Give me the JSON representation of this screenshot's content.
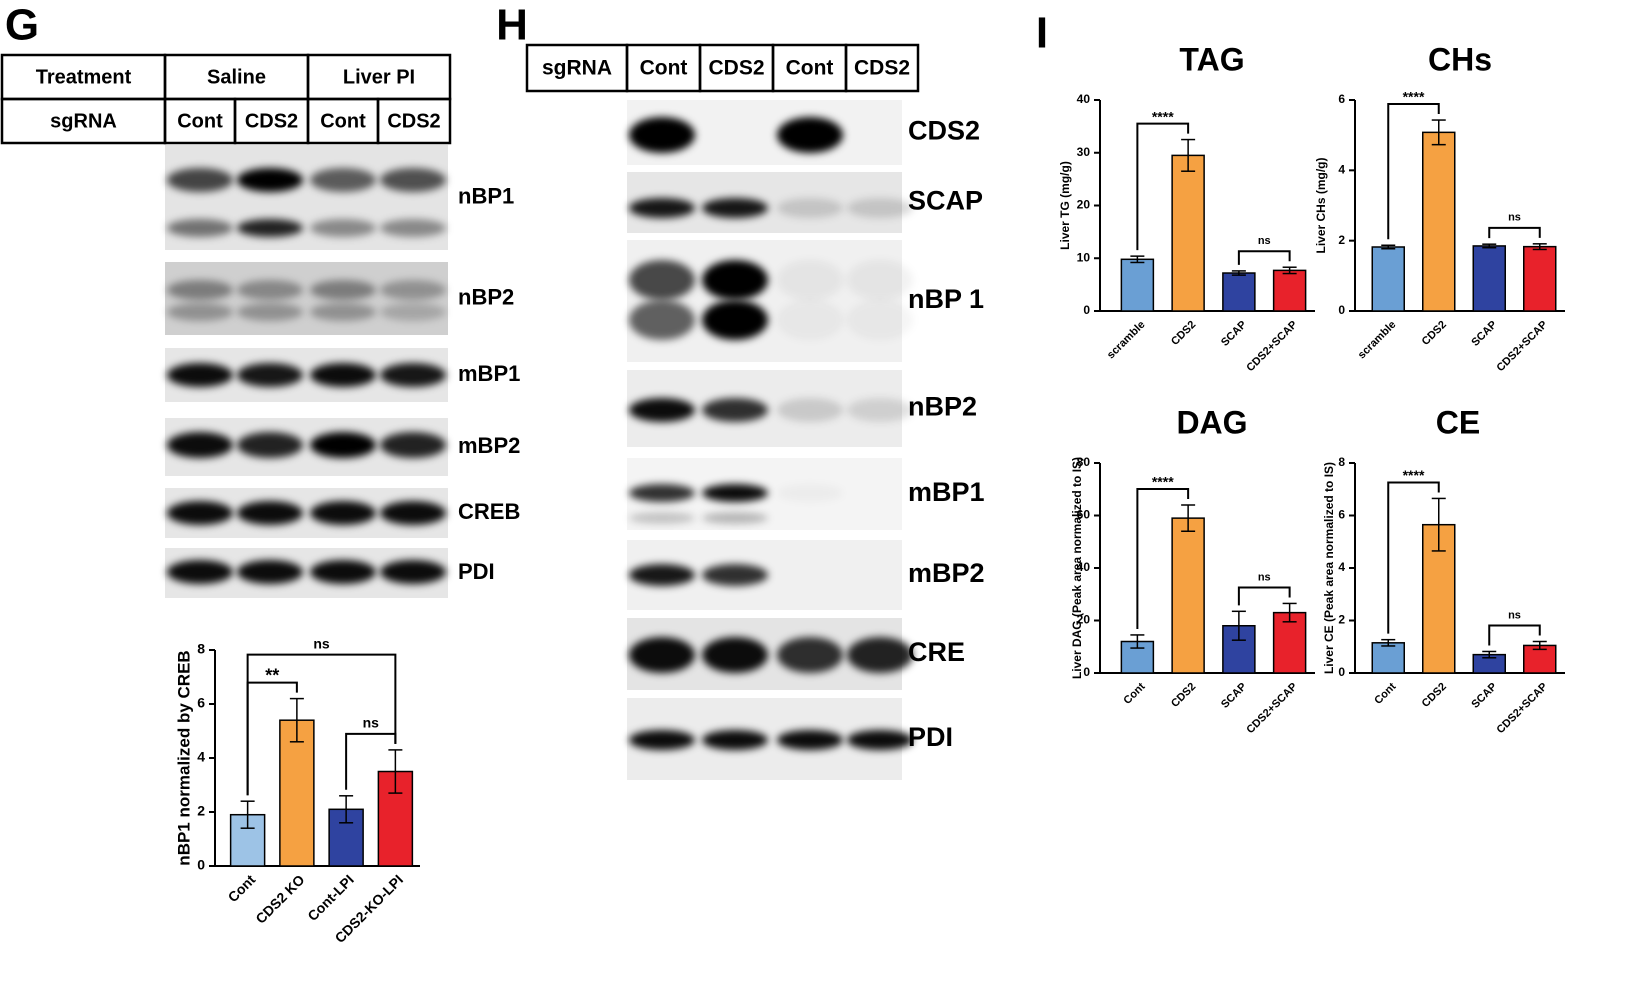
{
  "figure": {
    "panels": [
      "G",
      "H",
      "I"
    ],
    "g_table": {
      "rows": [
        [
          "Treatment",
          "Saline",
          "Liver PI"
        ],
        [
          "sgRNA",
          "Cont",
          "CDS2",
          "Cont",
          "CDS2"
        ]
      ]
    },
    "g_blots": [
      "nBP1",
      "nBP2",
      "mBP1",
      "mBP2",
      "CREB",
      "PDI"
    ],
    "h_table": {
      "rows": [
        [
          "sgRNA",
          "Cont",
          "CDS2",
          "Cont",
          "CDS2"
        ]
      ]
    },
    "h_blots": [
      "CDS2",
      "SCAP",
      "nBP 1",
      "nBP2",
      "mBP1",
      "mBP2",
      "CRE",
      "PDI"
    ]
  },
  "chart_data": [
    {
      "type": "bar",
      "y_label": "nBP1 normalized by CREB",
      "categories": [
        "Cont",
        "CDS2 KO",
        "Cont-LPI",
        "CDS2-KO-LPI"
      ],
      "values": [
        1.9,
        5.4,
        2.1,
        3.5
      ],
      "errors": [
        0.5,
        0.8,
        0.5,
        0.8
      ],
      "colors": [
        "#9dc3e6",
        "#f5a142",
        "#2f43a0",
        "#e8222b"
      ],
      "ylim": [
        0,
        8
      ],
      "yticks": [
        0,
        2,
        4,
        6,
        8
      ],
      "comparisons": [
        {
          "label": "**",
          "pair": [
            "Cont",
            "CDS2 KO"
          ]
        },
        {
          "label": "ns",
          "pair": [
            "Cont-LPI",
            "CDS2-KO-LPI"
          ]
        },
        {
          "label": "ns",
          "pair": [
            "Cont",
            "CDS2-KO-LPI"
          ]
        }
      ]
    },
    {
      "type": "bar",
      "title": "TAG",
      "y_label": "Liver TG (mg/g)",
      "categories": [
        "scramble",
        "CDS2",
        "SCAP",
        "CDS2+SCAP"
      ],
      "values": [
        9.8,
        29.5,
        7.2,
        7.7
      ],
      "errors": [
        0.6,
        3,
        0.4,
        0.6
      ],
      "colors": [
        "#6a9fd4",
        "#f5a142",
        "#2f43a0",
        "#e8222b"
      ],
      "ylim": [
        0,
        40
      ],
      "yticks": [
        0,
        10,
        20,
        30,
        40
      ],
      "comparisons": [
        {
          "label": "****",
          "pair": [
            "scramble",
            "CDS2"
          ]
        },
        {
          "label": "ns",
          "pair": [
            "SCAP",
            "CDS2+SCAP"
          ]
        }
      ]
    },
    {
      "type": "bar",
      "title": "CHs",
      "y_label": "Liver CHs (mg/g)",
      "categories": [
        "scramble",
        "CDS2",
        "SCAP",
        "CDS2+SCAP"
      ],
      "values": [
        1.82,
        5.08,
        1.85,
        1.83
      ],
      "errors": [
        0.05,
        0.35,
        0.05,
        0.08
      ],
      "colors": [
        "#6a9fd4",
        "#f5a142",
        "#2f43a0",
        "#e8222b"
      ],
      "ylim": [
        0,
        6
      ],
      "yticks": [
        0,
        2,
        4,
        6
      ],
      "comparisons": [
        {
          "label": "****",
          "pair": [
            "scramble",
            "CDS2"
          ]
        },
        {
          "label": "ns",
          "pair": [
            "SCAP",
            "CDS2+SCAP"
          ]
        }
      ]
    },
    {
      "type": "bar",
      "title": "DAG",
      "y_label": "Liver DAG (Peak area normalized to IS)",
      "categories": [
        "Cont",
        "CDS2",
        "SCAP",
        "CDS2+SCAP"
      ],
      "values": [
        12,
        59,
        18,
        23
      ],
      "errors": [
        2.5,
        5,
        5.5,
        3.5
      ],
      "colors": [
        "#6a9fd4",
        "#f5a142",
        "#2f43a0",
        "#e8222b"
      ],
      "ylim": [
        0,
        80
      ],
      "yticks": [
        0,
        20,
        40,
        60,
        80
      ],
      "comparisons": [
        {
          "label": "****",
          "pair": [
            "Cont",
            "CDS2"
          ]
        },
        {
          "label": "ns",
          "pair": [
            "SCAP",
            "CDS2+SCAP"
          ]
        }
      ]
    },
    {
      "type": "bar",
      "title": "CE",
      "y_label": "Liver CE (Peak area normalized to IS)",
      "categories": [
        "Cont",
        "CDS2",
        "SCAP",
        "CDS2+SCAP"
      ],
      "values": [
        1.15,
        5.65,
        0.7,
        1.05
      ],
      "errors": [
        0.12,
        1.0,
        0.12,
        0.15
      ],
      "colors": [
        "#6a9fd4",
        "#f5a142",
        "#2f43a0",
        "#e8222b"
      ],
      "ylim": [
        0,
        8
      ],
      "yticks": [
        0,
        2,
        4,
        6,
        8
      ],
      "comparisons": [
        {
          "label": "****",
          "pair": [
            "Cont",
            "CDS2"
          ]
        },
        {
          "label": "ns",
          "pair": [
            "SCAP",
            "CDS2+SCAP"
          ]
        }
      ]
    }
  ]
}
